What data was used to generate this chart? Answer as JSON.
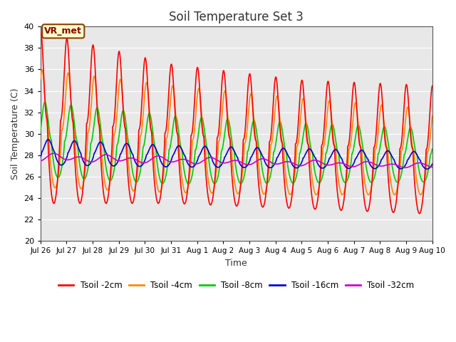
{
  "title": "Soil Temperature Set 3",
  "xlabel": "Time",
  "ylabel": "Soil Temperature (C)",
  "ylim": [
    20,
    40
  ],
  "yticks": [
    20,
    22,
    24,
    26,
    28,
    30,
    32,
    34,
    36,
    38,
    40
  ],
  "annotation": "VR_met",
  "background_color": "#e8e8e8",
  "series_order": [
    "Tsoil -2cm",
    "Tsoil -4cm",
    "Tsoil -8cm",
    "Tsoil -16cm",
    "Tsoil -32cm"
  ],
  "series": {
    "Tsoil -2cm": {
      "color": "#ff0000",
      "lw": 1.2
    },
    "Tsoil -4cm": {
      "color": "#ff8800",
      "lw": 1.2
    },
    "Tsoil -8cm": {
      "color": "#00cc00",
      "lw": 1.2
    },
    "Tsoil -16cm": {
      "color": "#0000cc",
      "lw": 1.2
    },
    "Tsoil -32cm": {
      "color": "#cc00cc",
      "lw": 1.2
    }
  },
  "xtick_labels": [
    "Jul 26",
    "Jul 27",
    "Jul 28",
    "Jul 29",
    "Jul 30",
    "Jul 31",
    "Aug 1",
    "Aug 2",
    "Aug 3",
    "Aug 4",
    "Aug 5",
    "Aug 6",
    "Aug 7",
    "Aug 8",
    "Aug 9",
    "Aug 10"
  ],
  "xtick_positions": [
    0,
    1,
    2,
    3,
    4,
    5,
    6,
    7,
    8,
    9,
    10,
    11,
    12,
    13,
    14,
    15
  ],
  "num_points": 2000
}
